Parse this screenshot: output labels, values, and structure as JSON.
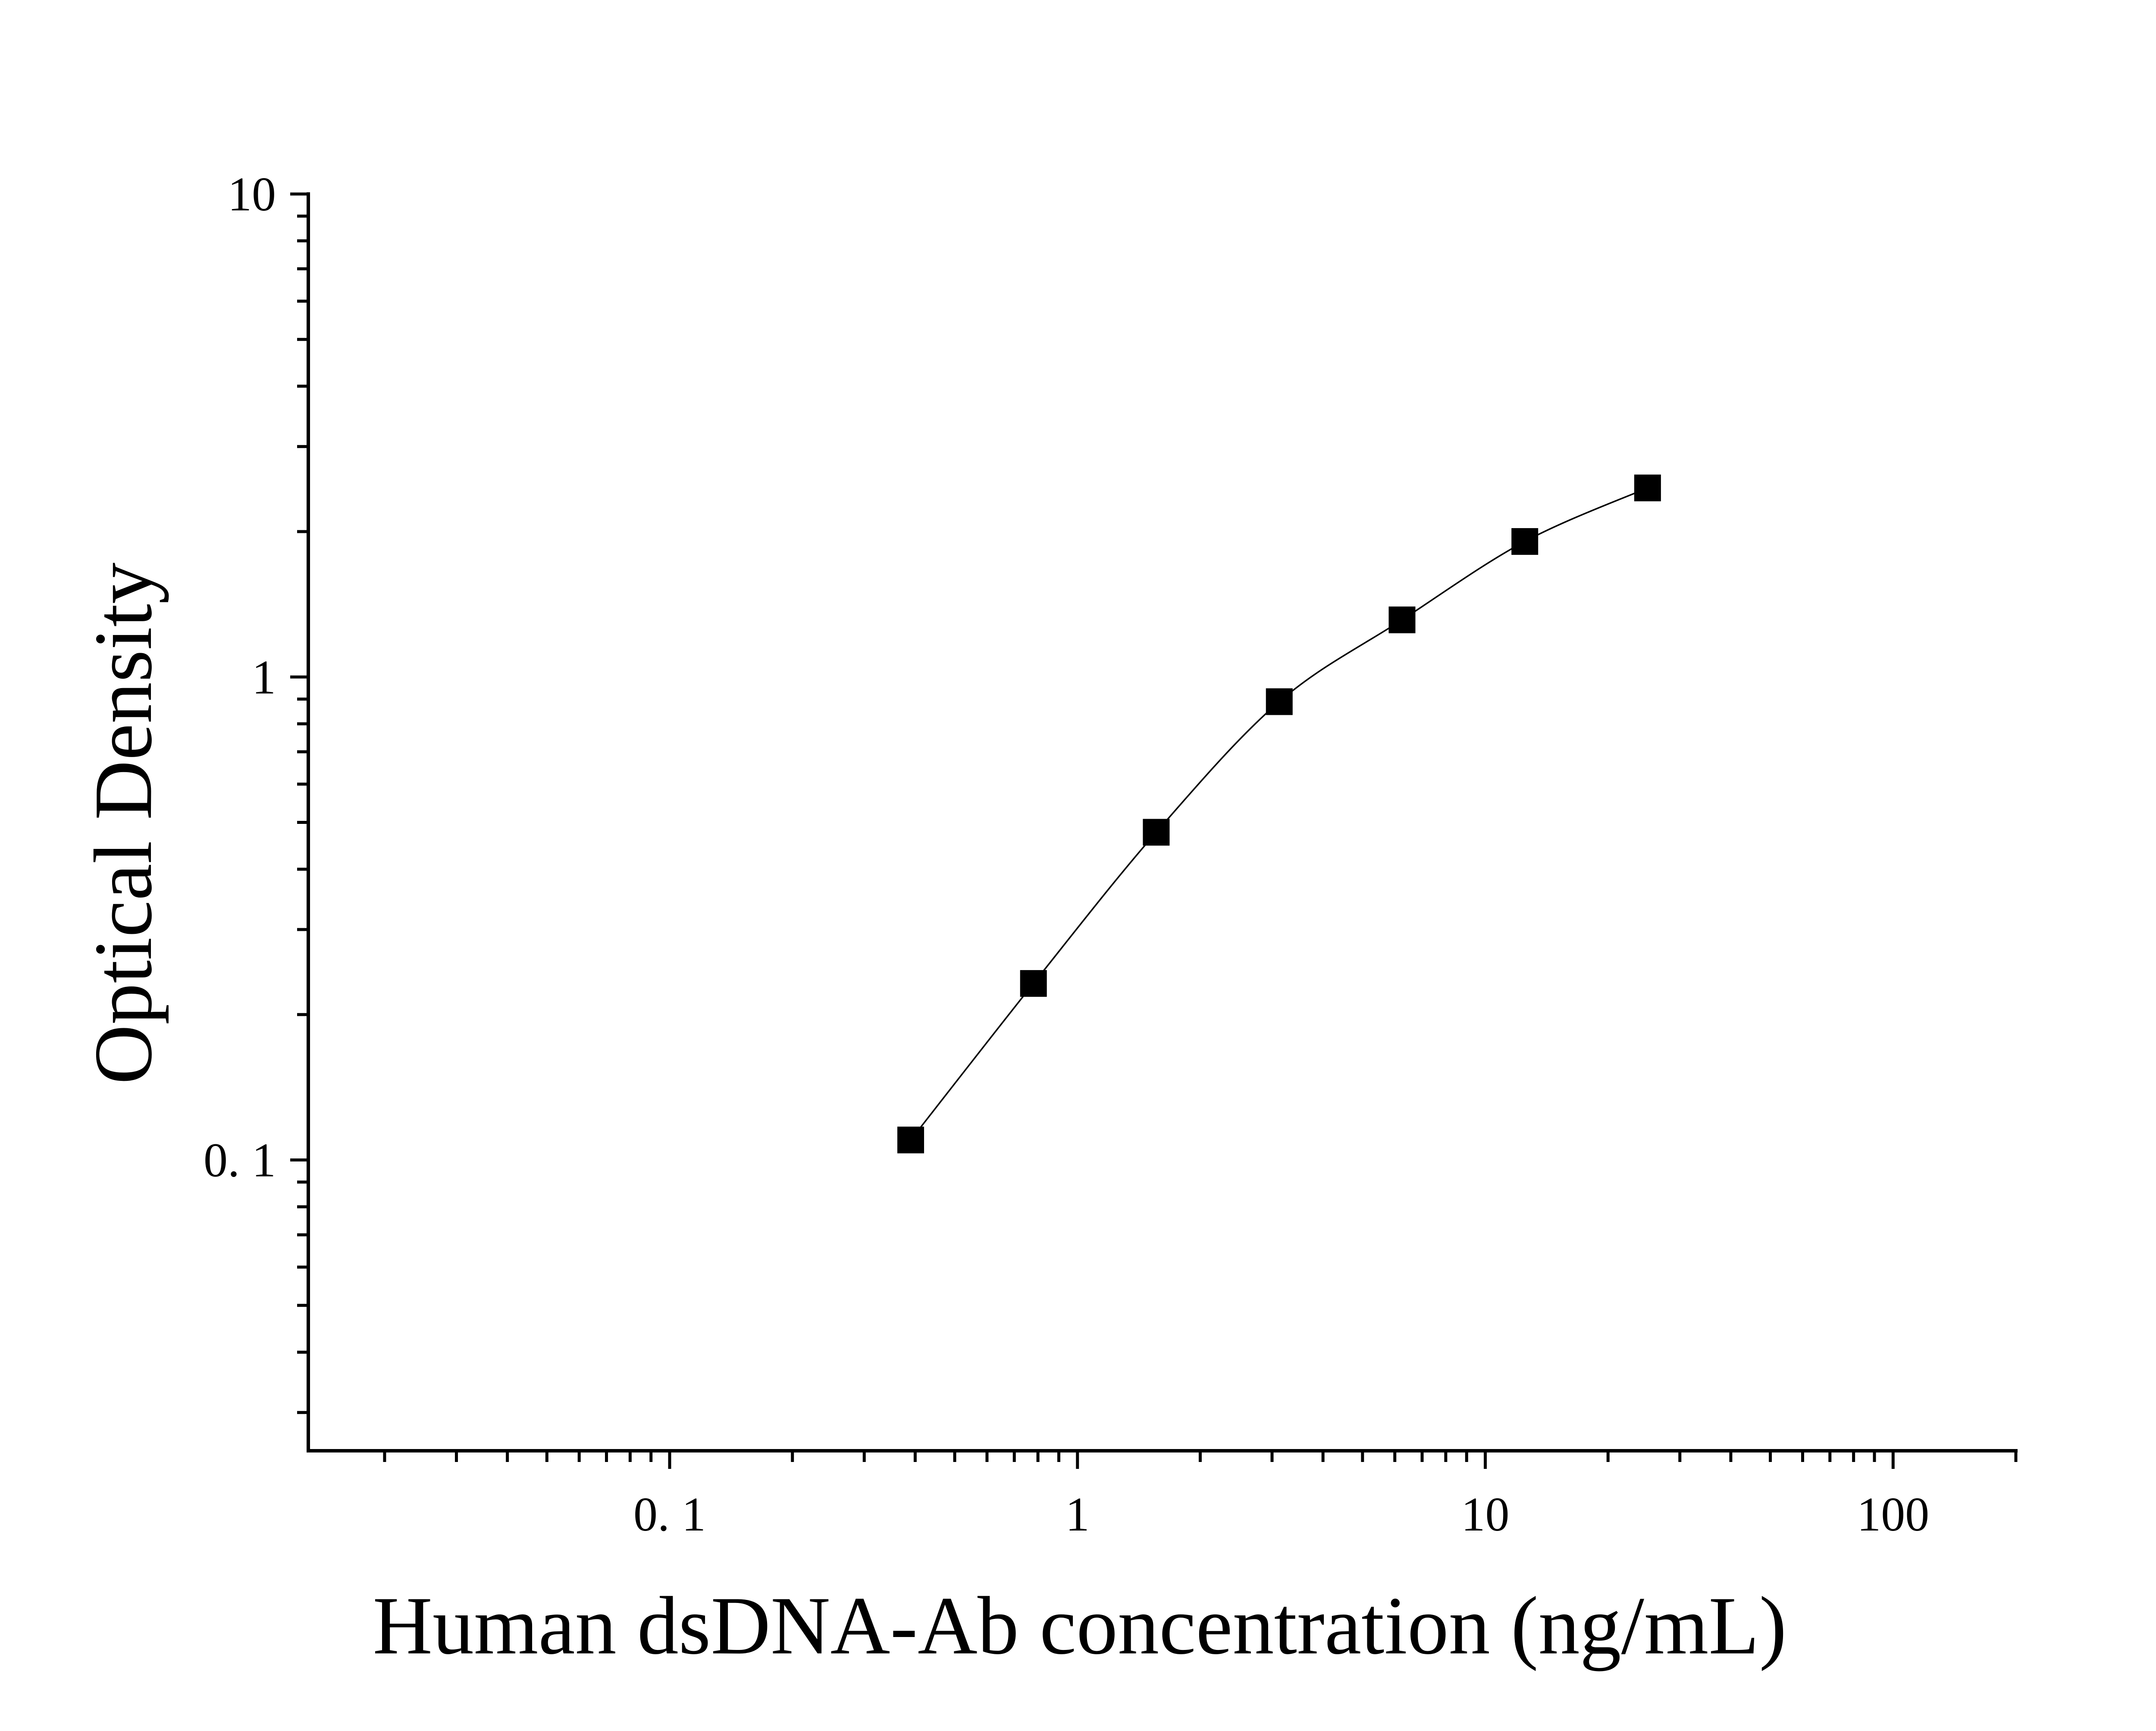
{
  "chart_data": {
    "type": "line",
    "title": "",
    "xlabel": "Human dsDNA-Ab concentration (ng/mL)",
    "ylabel": "Optical Density",
    "xscale": "log",
    "yscale": "log",
    "xlim": [
      0.013,
      200
    ],
    "ylim": [
      0.025,
      10
    ],
    "x_ticks": [
      {
        "value": 0.1,
        "label": "0. 1"
      },
      {
        "value": 1,
        "label": "1"
      },
      {
        "value": 10,
        "label": "10"
      },
      {
        "value": 100,
        "label": "100"
      }
    ],
    "y_ticks": [
      {
        "value": 0.1,
        "label": "0. 1"
      },
      {
        "value": 1,
        "label": "1"
      },
      {
        "value": 10,
        "label": "10"
      }
    ],
    "grid": false,
    "legend": "none",
    "marker": "square",
    "colors": {
      "line": "#000000",
      "marker": "#000000",
      "axis": "#000000",
      "background": "#ffffff"
    },
    "series": [
      {
        "x": [
          0.39,
          0.78,
          1.56,
          3.125,
          6.25,
          12.5,
          25
        ],
        "y": [
          0.11,
          0.232,
          0.477,
          0.889,
          1.313,
          1.908,
          2.463
        ]
      }
    ]
  }
}
